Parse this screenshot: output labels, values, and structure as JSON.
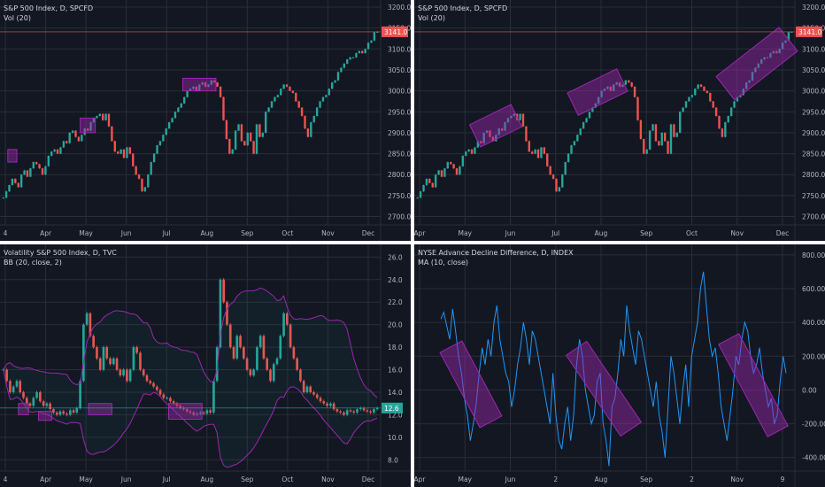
{
  "colors": {
    "background": "#131722",
    "grid": "#2a2e39",
    "axis_text": "#b2b5be",
    "up": "#26a69a",
    "down": "#ef5350",
    "highlight": "#9c27b0",
    "bb_line": "#9c27b0",
    "ad_line": "#2196f3",
    "price_line": "#ef5350"
  },
  "panels": [
    {
      "title": "S&P 500 Index, D, SPCFD",
      "subtitle": "Vol (20)",
      "last_price": "3141.0"
    },
    {
      "title": "S&P 500 Index, D, SPCFD",
      "subtitle": "Vol (20)",
      "last_price": "3141.0"
    },
    {
      "title": "Volatility S&P 500 Index, D, TVC",
      "subtitle": "BB (20, close, 2)",
      "last_price": "12.6"
    },
    {
      "title": "NYSE Advance Decline Difference, D, INDEX",
      "subtitle": "MA (10, close)",
      "last_price": ""
    }
  ],
  "chart_data": [
    {
      "type": "candlestick",
      "title": "S&P 500 Index, D, SPCFD",
      "y_ticks": [
        "2700.0",
        "2750.0",
        "2800.0",
        "2850.0",
        "2900.0",
        "2950.0",
        "3000.0",
        "3050.0",
        "3100.0",
        "3150.0",
        "3200.0"
      ],
      "ylim": [
        2680,
        3200
      ],
      "x_ticks": [
        "4",
        "Apr",
        "May",
        "Jun",
        "Jul",
        "Aug",
        "Sep",
        "Oct",
        "Nov",
        "Dec"
      ],
      "last": 3141.0,
      "closes": [
        2745,
        2760,
        2775,
        2790,
        2780,
        2770,
        2800,
        2810,
        2795,
        2815,
        2830,
        2825,
        2815,
        2800,
        2820,
        2845,
        2855,
        2860,
        2850,
        2865,
        2880,
        2875,
        2900,
        2905,
        2890,
        2880,
        2895,
        2910,
        2905,
        2925,
        2935,
        2940,
        2945,
        2930,
        2945,
        2915,
        2880,
        2855,
        2850,
        2860,
        2840,
        2865,
        2850,
        2820,
        2800,
        2790,
        2760,
        2770,
        2800,
        2830,
        2850,
        2870,
        2880,
        2895,
        2910,
        2925,
        2935,
        2950,
        2960,
        2970,
        2985,
        3000,
        3005,
        3010,
        3000,
        3015,
        3020,
        3010,
        3015,
        3025,
        3020,
        3010,
        2985,
        2930,
        2885,
        2850,
        2860,
        2905,
        2920,
        2880,
        2870,
        2900,
        2880,
        2850,
        2920,
        2890,
        2900,
        2950,
        2960,
        2975,
        2985,
        2990,
        3005,
        3015,
        3010,
        3000,
        2995,
        2975,
        2960,
        2940,
        2910,
        2890,
        2925,
        2940,
        2960,
        2975,
        2985,
        2990,
        3005,
        3020,
        3025,
        3045,
        3055,
        3065,
        3075,
        3080,
        3080,
        3090,
        3095,
        3090,
        3100,
        3115,
        3120,
        3140,
        3141
      ],
      "highlights": [
        {
          "x0": 2,
          "x1": 4,
          "y0": 2830,
          "y1": 2860
        },
        {
          "x0": 26,
          "x1": 30,
          "y0": 2900,
          "y1": 2935
        },
        {
          "x0": 60,
          "x1": 70,
          "y0": 3000,
          "y1": 3030
        }
      ]
    },
    {
      "type": "candlestick",
      "title": "S&P 500 Index, D, SPCFD",
      "y_ticks": [
        "2700.0",
        "2750.0",
        "2800.0",
        "2850.0",
        "2900.0",
        "2950.0",
        "3000.0",
        "3050.0",
        "3100.0",
        "3150.0",
        "3200.0"
      ],
      "ylim": [
        2680,
        3200
      ],
      "x_ticks": [
        "Apr",
        "May",
        "Jun",
        "Jul",
        "Aug",
        "Sep",
        "Oct",
        "Nov",
        "Dec"
      ],
      "last": 3141.0,
      "closes": [
        2745,
        2760,
        2775,
        2790,
        2780,
        2770,
        2800,
        2810,
        2795,
        2815,
        2830,
        2825,
        2815,
        2800,
        2820,
        2845,
        2855,
        2860,
        2850,
        2865,
        2880,
        2875,
        2900,
        2905,
        2890,
        2880,
        2895,
        2910,
        2905,
        2925,
        2935,
        2940,
        2945,
        2930,
        2945,
        2915,
        2880,
        2855,
        2850,
        2860,
        2840,
        2865,
        2850,
        2820,
        2800,
        2790,
        2760,
        2770,
        2800,
        2830,
        2850,
        2870,
        2880,
        2895,
        2910,
        2925,
        2935,
        2950,
        2960,
        2970,
        2985,
        3000,
        3005,
        3010,
        3000,
        3015,
        3020,
        3010,
        3015,
        3025,
        3020,
        3010,
        2985,
        2930,
        2885,
        2850,
        2860,
        2905,
        2920,
        2880,
        2870,
        2900,
        2880,
        2850,
        2920,
        2890,
        2900,
        2950,
        2960,
        2975,
        2985,
        2990,
        3005,
        3015,
        3010,
        3000,
        2995,
        2975,
        2960,
        2940,
        2910,
        2890,
        2925,
        2940,
        2960,
        2975,
        2985,
        2990,
        3005,
        3020,
        3025,
        3045,
        3055,
        3065,
        3075,
        3080,
        3080,
        3090,
        3095,
        3090,
        3100,
        3115,
        3120,
        3140,
        3141
      ]
    },
    {
      "type": "candlestick",
      "title": "Volatility S&P 500 Index, D, TVC",
      "y_ticks": [
        "8.0",
        "10.0",
        "12.0",
        "14.0",
        "16.0",
        "18.0",
        "20.0",
        "22.0",
        "24.0",
        "26.0"
      ],
      "ylim": [
        7,
        26.5
      ],
      "x_ticks": [
        "4",
        "Apr",
        "May",
        "Jun",
        "Jul",
        "Aug",
        "Sep",
        "Oct",
        "Nov",
        "Dec"
      ],
      "last": 12.6,
      "closes": [
        16,
        15,
        14,
        14.5,
        15,
        14,
        13.5,
        13,
        12.8,
        13.5,
        14,
        13.2,
        12.8,
        13,
        12.5,
        12.2,
        12.0,
        12.3,
        12.1,
        12.0,
        12.4,
        12.2,
        12.6,
        15,
        20,
        21,
        19,
        18,
        17,
        16,
        18,
        17,
        16.5,
        17,
        16,
        15.5,
        16,
        15,
        16,
        18,
        17.5,
        16,
        15.5,
        15,
        14.8,
        14.5,
        14.2,
        13.8,
        13.5,
        13.5,
        13.2,
        13,
        12.8,
        12.6,
        12.5,
        12.3,
        12.2,
        12.0,
        12.1,
        12.2,
        12.1,
        12.4,
        12.2,
        15,
        18,
        24,
        22,
        20,
        18,
        17,
        19,
        18,
        17,
        16,
        15.5,
        16,
        18,
        19,
        17,
        16,
        15,
        16.5,
        17,
        19,
        21,
        20,
        18,
        17,
        16,
        15,
        14,
        14.5,
        14,
        13.8,
        13.5,
        13.2,
        13,
        12.8,
        13,
        12.5,
        12.3,
        12.2,
        12.0,
        12.4,
        12.3,
        12.2,
        12.5,
        12.6,
        12.4,
        12.3,
        12.2,
        12.5,
        12.6
      ],
      "highlights": [
        {
          "x0": 5,
          "x1": 7,
          "y0": 12.0,
          "y1": 13.0
        },
        {
          "x0": 11,
          "x1": 14,
          "y0": 11.5,
          "y1": 12.3
        },
        {
          "x0": 26,
          "x1": 32,
          "y0": 12.0,
          "y1": 13.0
        },
        {
          "x0": 50,
          "x1": 59,
          "y0": 11.6,
          "y1": 13.0
        }
      ]
    },
    {
      "type": "line",
      "title": "NYSE Advance Decline Difference, D, INDEX",
      "y_ticks": [
        "-400.00",
        "-200.00",
        "0.00",
        "200.00",
        "400.00",
        "600.00",
        "800.00"
      ],
      "ylim": [
        -480,
        820
      ],
      "x_ticks": [
        "Apr",
        "May",
        "Jun",
        "2",
        "Aug",
        "Sep",
        "2",
        "Nov",
        "9"
      ],
      "values": [
        420,
        460,
        380,
        300,
        480,
        350,
        200,
        100,
        -50,
        -150,
        -300,
        -200,
        -80,
        100,
        250,
        150,
        300,
        200,
        400,
        500,
        300,
        200,
        100,
        50,
        -100,
        0,
        150,
        250,
        400,
        300,
        150,
        350,
        300,
        200,
        100,
        0,
        -100,
        -200,
        100,
        -150,
        -300,
        -350,
        -200,
        -100,
        -300,
        -150,
        150,
        300,
        200,
        0,
        -100,
        -200,
        -150,
        50,
        100,
        -200,
        -300,
        -450,
        -100,
        -50,
        100,
        300,
        200,
        500,
        350,
        250,
        150,
        350,
        300,
        200,
        100,
        0,
        -100,
        50,
        -150,
        -250,
        -400,
        -100,
        200,
        100,
        -50,
        -200,
        0,
        150,
        -100,
        200,
        300,
        400,
        600,
        700,
        500,
        300,
        200,
        250,
        100,
        -100,
        -200,
        -300,
        -150,
        0,
        200,
        150,
        300,
        400,
        350,
        200,
        100,
        150,
        250,
        100,
        0,
        -100,
        -50,
        -200,
        -150,
        50,
        200,
        100
      ]
    }
  ]
}
